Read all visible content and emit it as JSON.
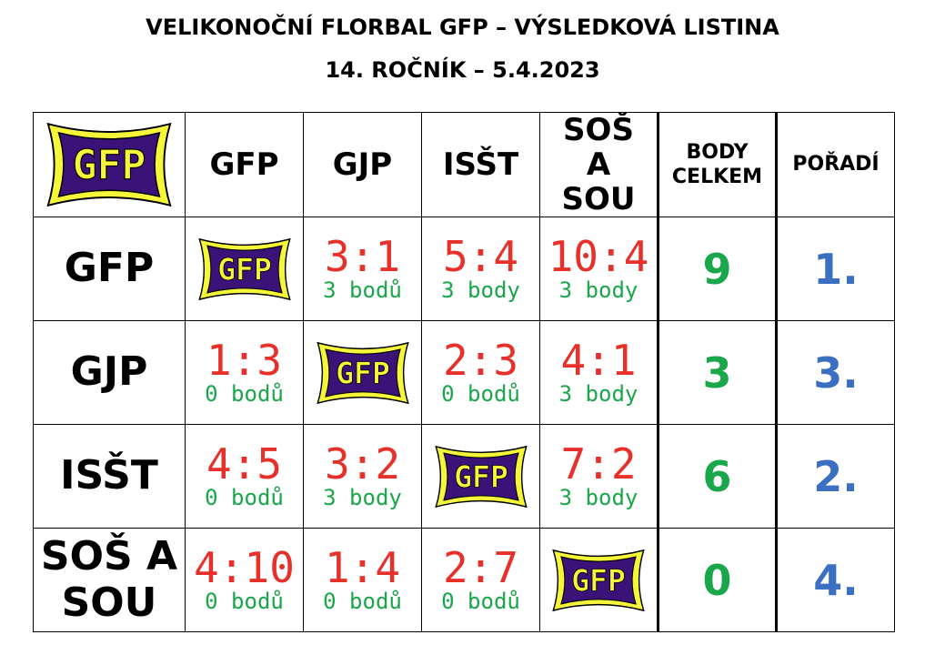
{
  "title_line1": "VELIKONOČNÍ FLORBAL GFP – VÝSLEDKOVÁ LISTINA",
  "title_line2": "14. ROČNÍK – 5.4.2023",
  "logo_text": "GFP",
  "colors": {
    "score": "#e8302a",
    "points": "#1aa64a",
    "rank": "#3a6fc1",
    "logo_bg": "#3b1278",
    "logo_border": "#f5f53a"
  },
  "header": {
    "teams": [
      "GFP",
      "GJP",
      "ISŠT",
      "SOŠ A SOU"
    ],
    "body_celkem": "BODY CELKEM",
    "poradi": "POŘADÍ"
  },
  "rows": [
    {
      "team": "GFP",
      "cells": [
        null,
        {
          "score": "3:1",
          "pts": "3 bodů"
        },
        {
          "score": "5:4",
          "pts": "3 body"
        },
        {
          "score": "10:4",
          "pts": "3 body"
        }
      ],
      "total": "9",
      "rank": "1."
    },
    {
      "team": "GJP",
      "cells": [
        {
          "score": "1:3",
          "pts": "0 bodů"
        },
        null,
        {
          "score": "2:3",
          "pts": "0 bodů"
        },
        {
          "score": "4:1",
          "pts": "3 body"
        }
      ],
      "total": "3",
      "rank": "3."
    },
    {
      "team": "ISŠT",
      "cells": [
        {
          "score": "4:5",
          "pts": "0 bodů"
        },
        {
          "score": "3:2",
          "pts": "3 body"
        },
        null,
        {
          "score": "7:2",
          "pts": "3 body"
        }
      ],
      "total": "6",
      "rank": "2."
    },
    {
      "team": "SOŠ A SOU",
      "cells": [
        {
          "score": "4:10",
          "pts": "0 bodů"
        },
        {
          "score": "1:4",
          "pts": "0 bodů"
        },
        {
          "score": "2:7",
          "pts": "0 bodů"
        },
        null
      ],
      "total": "0",
      "rank": "4."
    }
  ]
}
